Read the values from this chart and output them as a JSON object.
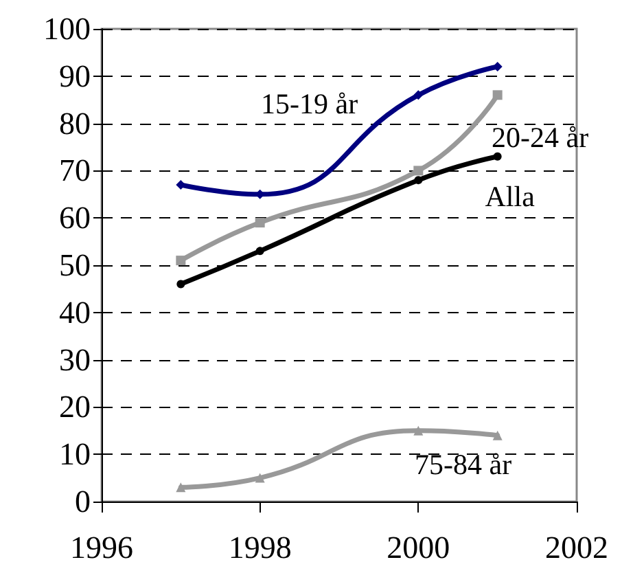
{
  "chart_data": {
    "type": "line",
    "x": [
      1997,
      1998,
      2000,
      2001
    ],
    "series": [
      {
        "name": "15-19 år",
        "color": "#000080",
        "marker": "diamond",
        "values": [
          67,
          65,
          86,
          92
        ]
      },
      {
        "name": "20-24 år",
        "color": "#999999",
        "marker": "square",
        "values": [
          51,
          59,
          70,
          86
        ]
      },
      {
        "name": "Alla",
        "color": "#000000",
        "marker": "circle",
        "values": [
          46,
          53,
          68,
          73
        ]
      },
      {
        "name": "75-84 år",
        "color": "#999999",
        "marker": "triangle",
        "values": [
          3,
          5,
          15,
          14
        ]
      }
    ],
    "xlim": [
      1996,
      2002
    ],
    "xticks": [
      1996,
      1998,
      2000,
      2002
    ],
    "ylim": [
      0,
      100
    ],
    "yticks": [
      0,
      10,
      20,
      30,
      40,
      50,
      60,
      70,
      80,
      90,
      100
    ],
    "grid": "y",
    "line_style": "solid"
  }
}
